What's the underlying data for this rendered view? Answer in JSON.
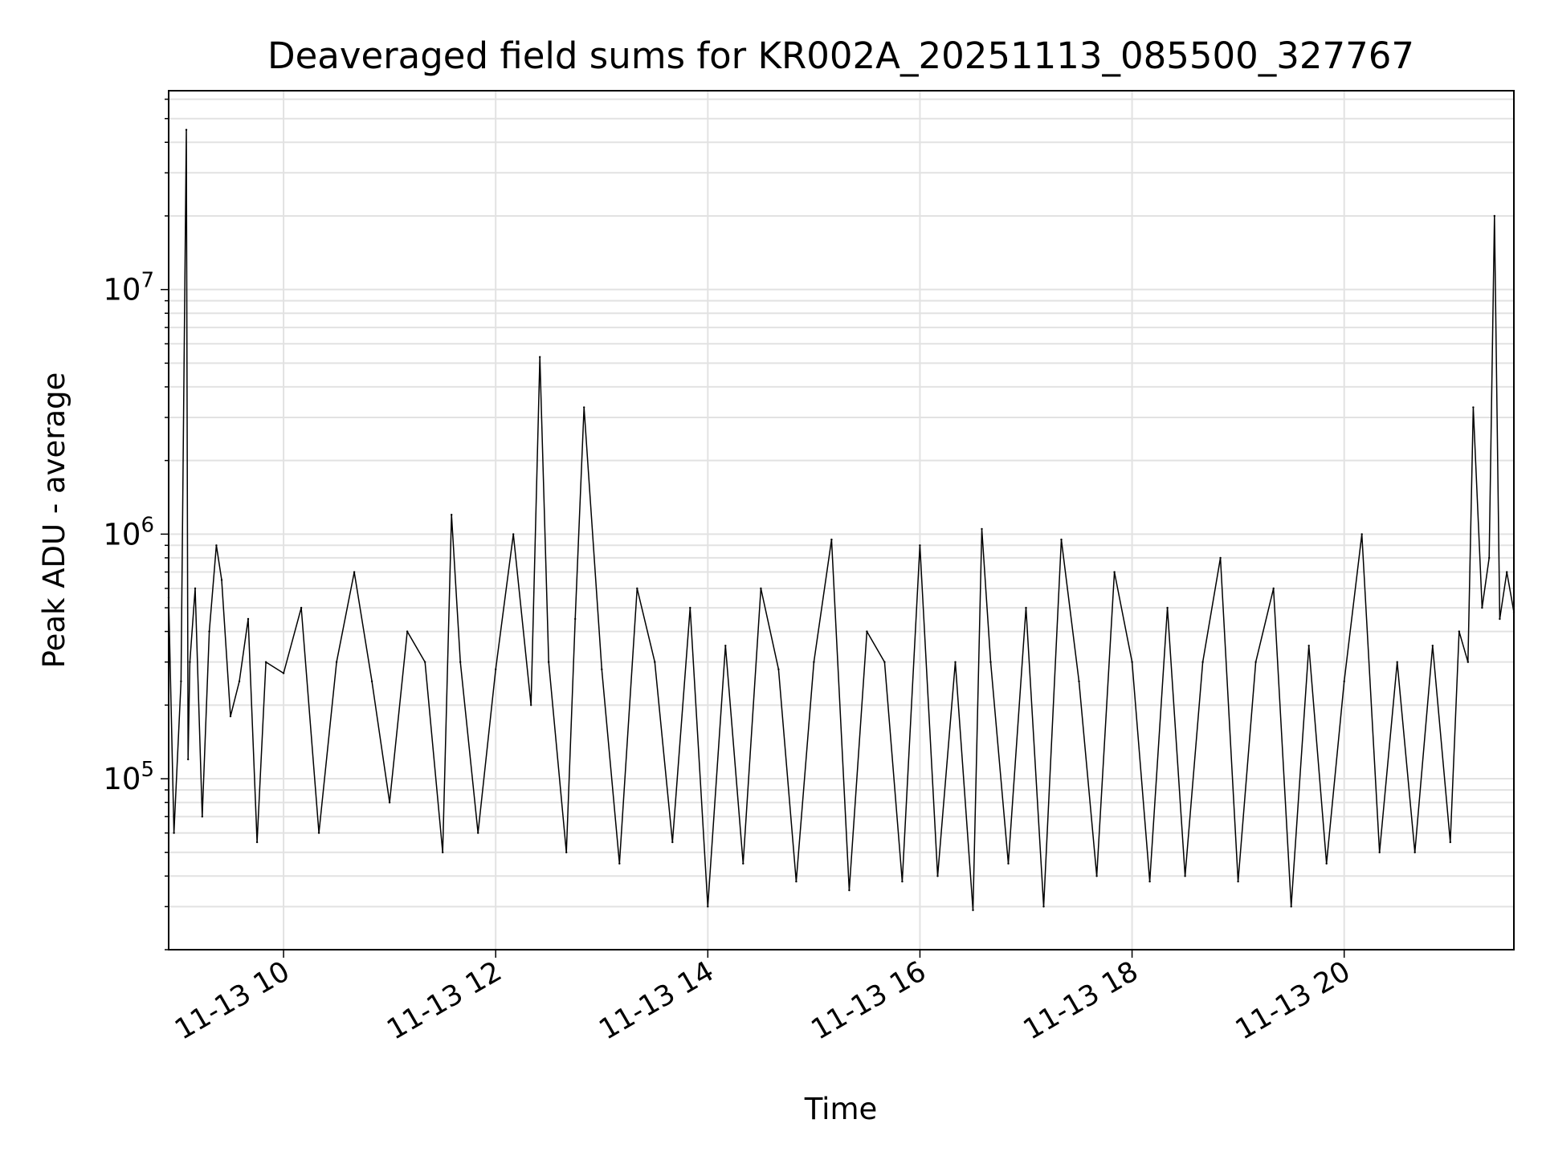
{
  "chart_data": {
    "type": "line",
    "title": "Deaveraged field sums for KR002A_20251113_085500_327767",
    "xlabel": "Time",
    "ylabel": "Peak ADU - average",
    "yscale": "log",
    "ylim": [
      20000,
      65000000
    ],
    "xlim": [
      "2025-11-13 08:55",
      "2025-11-13 21:36"
    ],
    "x_ticks": [
      {
        "at": "2025-11-13 10:00",
        "label": "11-13 10"
      },
      {
        "at": "2025-11-13 12:00",
        "label": "11-13 12"
      },
      {
        "at": "2025-11-13 14:00",
        "label": "11-13 14"
      },
      {
        "at": "2025-11-13 16:00",
        "label": "11-13 16"
      },
      {
        "at": "2025-11-13 18:00",
        "label": "11-13 18"
      },
      {
        "at": "2025-11-13 20:00",
        "label": "11-13 20"
      }
    ],
    "y_ticks": [
      {
        "value": 100000,
        "base": "10",
        "exp": "5"
      },
      {
        "value": 1000000,
        "base": "10",
        "exp": "6"
      },
      {
        "value": 10000000,
        "base": "10",
        "exp": "7"
      }
    ],
    "grid": true,
    "line_color": "#000000",
    "series": [
      {
        "x": [
          "2025-11-13 08:55",
          "2025-11-13 08:58",
          "2025-11-13 09:02",
          "2025-11-13 09:05",
          "2025-11-13 09:06",
          "2025-11-13 09:07",
          "2025-11-13 09:10",
          "2025-11-13 09:14",
          "2025-11-13 09:18",
          "2025-11-13 09:22",
          "2025-11-13 09:25",
          "2025-11-13 09:30",
          "2025-11-13 09:35",
          "2025-11-13 09:40",
          "2025-11-13 09:45",
          "2025-11-13 09:50",
          "2025-11-13 10:00",
          "2025-11-13 10:10",
          "2025-11-13 10:20",
          "2025-11-13 10:30",
          "2025-11-13 10:40",
          "2025-11-13 10:50",
          "2025-11-13 11:00",
          "2025-11-13 11:10",
          "2025-11-13 11:20",
          "2025-11-13 11:30",
          "2025-11-13 11:35",
          "2025-11-13 11:40",
          "2025-11-13 11:50",
          "2025-11-13 12:00",
          "2025-11-13 12:10",
          "2025-11-13 12:20",
          "2025-11-13 12:25",
          "2025-11-13 12:30",
          "2025-11-13 12:40",
          "2025-11-13 12:45",
          "2025-11-13 12:50",
          "2025-11-13 13:00",
          "2025-11-13 13:10",
          "2025-11-13 13:20",
          "2025-11-13 13:30",
          "2025-11-13 13:40",
          "2025-11-13 13:50",
          "2025-11-13 14:00",
          "2025-11-13 14:10",
          "2025-11-13 14:20",
          "2025-11-13 14:30",
          "2025-11-13 14:40",
          "2025-11-13 14:50",
          "2025-11-13 15:00",
          "2025-11-13 15:10",
          "2025-11-13 15:20",
          "2025-11-13 15:30",
          "2025-11-13 15:40",
          "2025-11-13 15:50",
          "2025-11-13 16:00",
          "2025-11-13 16:10",
          "2025-11-13 16:20",
          "2025-11-13 16:30",
          "2025-11-13 16:35",
          "2025-11-13 16:40",
          "2025-11-13 16:50",
          "2025-11-13 17:00",
          "2025-11-13 17:10",
          "2025-11-13 17:20",
          "2025-11-13 17:30",
          "2025-11-13 17:40",
          "2025-11-13 17:50",
          "2025-11-13 18:00",
          "2025-11-13 18:10",
          "2025-11-13 18:20",
          "2025-11-13 18:30",
          "2025-11-13 18:40",
          "2025-11-13 18:50",
          "2025-11-13 19:00",
          "2025-11-13 19:10",
          "2025-11-13 19:20",
          "2025-11-13 19:30",
          "2025-11-13 19:40",
          "2025-11-13 19:50",
          "2025-11-13 20:00",
          "2025-11-13 20:10",
          "2025-11-13 20:20",
          "2025-11-13 20:30",
          "2025-11-13 20:40",
          "2025-11-13 20:50",
          "2025-11-13 21:00",
          "2025-11-13 21:05",
          "2025-11-13 21:10",
          "2025-11-13 21:13",
          "2025-11-13 21:18",
          "2025-11-13 21:22",
          "2025-11-13 21:25",
          "2025-11-13 21:28",
          "2025-11-13 21:32",
          "2025-11-13 21:36"
        ],
        "values": [
          550000,
          60000,
          250000,
          45000000,
          120000,
          300000,
          600000,
          70000,
          400000,
          900000,
          650000,
          180000,
          250000,
          450000,
          55000,
          300000,
          270000,
          500000,
          60000,
          300000,
          700000,
          250000,
          80000,
          400000,
          300000,
          50000,
          1200000,
          300000,
          60000,
          280000,
          1000000,
          200000,
          5300000,
          300000,
          50000,
          450000,
          3300000,
          280000,
          45000,
          600000,
          300000,
          55000,
          500000,
          30000,
          350000,
          45000,
          600000,
          280000,
          38000,
          300000,
          950000,
          35000,
          400000,
          300000,
          38000,
          900000,
          40000,
          300000,
          29000,
          1050000,
          300000,
          45000,
          500000,
          30000,
          950000,
          250000,
          40000,
          700000,
          300000,
          38000,
          500000,
          40000,
          300000,
          800000,
          38000,
          300000,
          600000,
          30000,
          350000,
          45000,
          250000,
          1000000,
          50000,
          300000,
          50000,
          350000,
          55000,
          400000,
          300000,
          3300000,
          500000,
          800000,
          20000000,
          450000,
          700000,
          480000
        ]
      }
    ]
  }
}
